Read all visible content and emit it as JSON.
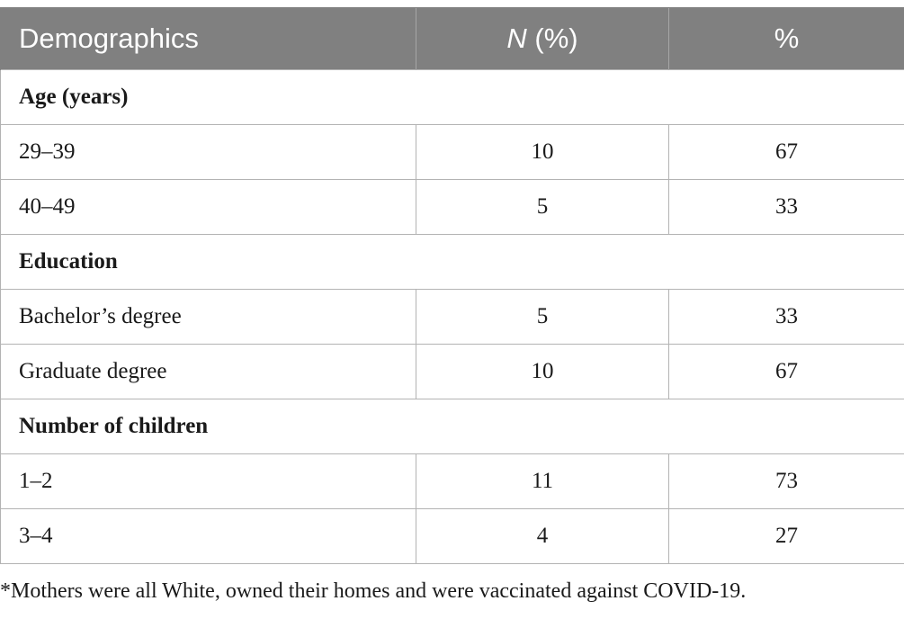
{
  "table": {
    "headers": {
      "col1": "Demographics",
      "col2_italic": "N",
      "col2_rest": " (%)",
      "col3": "%"
    },
    "groups": [
      {
        "label": "Age (years)",
        "rows": [
          {
            "label": "29–39",
            "n": "10",
            "pct": "67"
          },
          {
            "label": "40–49",
            "n": "5",
            "pct": "33"
          }
        ]
      },
      {
        "label": "Education",
        "rows": [
          {
            "label": "Bachelor’s degree",
            "n": "5",
            "pct": "33"
          },
          {
            "label": "Graduate degree",
            "n": "10",
            "pct": "67"
          }
        ]
      },
      {
        "label": "Number of children",
        "rows": [
          {
            "label": "1–2",
            "n": "11",
            "pct": "73"
          },
          {
            "label": "3–4",
            "n": "4",
            "pct": "27"
          }
        ]
      }
    ]
  },
  "footnote": "*Mothers were all White, owned their homes and were vaccinated against COVID-19."
}
